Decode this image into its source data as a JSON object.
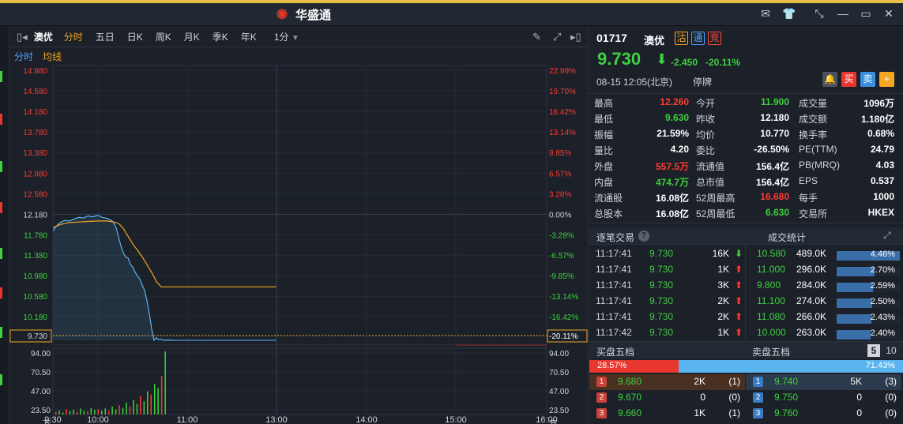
{
  "app": {
    "name": "华盛通",
    "logo_icon": "weibo-eye-logo-icon"
  },
  "window_controls": [
    "mail-icon",
    "tshirt-skin-icon",
    "shrink-icon",
    "minimize-icon",
    "maximize-icon",
    "close-icon"
  ],
  "toolbar": {
    "stock_name": "澳优",
    "tabs": [
      "分时",
      "五日",
      "日K",
      "周K",
      "月K",
      "季K",
      "年K"
    ],
    "active_tab": "分时",
    "period": "1分",
    "sub_tabs": [
      "分时",
      "均线"
    ]
  },
  "colors": {
    "up": "#ff3b30",
    "down": "#3fd13f",
    "price_line": "#5ab4f0",
    "avg_line": "#f5a623",
    "bg": "#1b2029"
  },
  "chart_data": {
    "type": "line",
    "title": "",
    "x_ticks": [
      "9:30",
      "10:00",
      "11:00",
      "13:00",
      "14:00",
      "15:00",
      "16:00"
    ],
    "y_left_ticks": [
      "14.980",
      "14.580",
      "14.180",
      "13.780",
      "13.380",
      "12.980",
      "12.580",
      "12.180",
      "11.780",
      "11.380",
      "10.980",
      "10.580",
      "10.180",
      "9.730"
    ],
    "y_right_ticks": [
      "22.99%",
      "19.70%",
      "16.42%",
      "13.14%",
      "9.85%",
      "6.57%",
      "3.28%",
      "0.00%",
      "-3.28%",
      "-6.57%",
      "-9.85%",
      "-13.14%",
      "-16.42%",
      "-20.11%"
    ],
    "prev_close": 12.18,
    "current_price": 9.73,
    "ylim": [
      9.73,
      14.98
    ],
    "series": [
      {
        "name": "",
        "x": [
          0,
          3,
          6,
          10,
          14,
          18,
          22,
          26,
          30,
          34,
          38,
          42,
          46,
          50,
          52,
          54,
          56,
          58,
          60,
          62,
          64,
          66,
          68,
          70,
          72,
          74,
          76,
          78,
          80,
          82,
          84,
          86,
          88,
          90,
          92,
          94,
          95,
          96,
          97,
          98,
          99,
          100,
          101,
          102,
          103,
          104
        ],
        "y": [
          11.86,
          11.95,
          12.02,
          12.06,
          12.05,
          12.09,
          12.12,
          12.11,
          12.15,
          12.13,
          12.16,
          12.12,
          12.1,
          12.06,
          12.0,
          11.9,
          11.72,
          11.55,
          11.42,
          11.35,
          11.33,
          11.2,
          11.15,
          11.05,
          10.98,
          10.92,
          10.8,
          10.7,
          10.5,
          10.25,
          9.95,
          9.73,
          9.78,
          9.74,
          9.75,
          9.73,
          9.73,
          9.74,
          9.73,
          9.73,
          9.74,
          9.73,
          9.73,
          9.73,
          9.73,
          9.73
        ]
      },
      {
        "name": "",
        "x": [
          0,
          6,
          14,
          22,
          30,
          38,
          46,
          52,
          56,
          60,
          64,
          68,
          72,
          76,
          80,
          84,
          88,
          92,
          100,
          110,
          130,
          150,
          170,
          190
        ],
        "y": [
          11.92,
          11.98,
          12.02,
          12.03,
          12.04,
          12.05,
          12.05,
          12.03,
          12.0,
          11.9,
          11.75,
          11.6,
          11.48,
          11.35,
          11.2,
          11.05,
          10.87,
          10.77,
          10.77,
          10.77,
          10.77,
          10.77,
          10.77,
          10.77
        ]
      }
    ],
    "volume": {
      "y_ticks": [
        "94.00",
        "70.50",
        "47.00",
        "23.50",
        "万"
      ],
      "x": [
        2,
        5,
        8,
        11,
        14,
        17,
        20,
        23,
        26,
        29,
        32,
        35,
        38,
        41,
        44,
        47,
        50,
        53,
        56,
        59,
        62,
        65,
        68,
        71,
        74,
        77,
        80,
        83,
        86,
        89,
        92,
        95
      ],
      "values": [
        4,
        6,
        3,
        8,
        5,
        7,
        4,
        9,
        6,
        5,
        10,
        7,
        8,
        6,
        9,
        5,
        12,
        8,
        14,
        10,
        18,
        12,
        22,
        16,
        28,
        20,
        35,
        30,
        46,
        40,
        58,
        95
      ],
      "ylim": [
        0,
        100
      ]
    },
    "x_domain": [
      0,
      420
    ]
  },
  "quote": {
    "code": "01717",
    "name": "澳优",
    "badges": [
      "沽",
      "通",
      "竞"
    ],
    "price": "9.730",
    "change": "-2.450",
    "change_pct": "-20.11%",
    "datetime": "08-15  12:05(北京)",
    "status": "停牌",
    "actions": [
      "bell-icon",
      "买",
      "卖",
      "+"
    ]
  },
  "stats": [
    [
      [
        "最高",
        "12.260",
        "up"
      ],
      [
        "今开",
        "11.900",
        "down"
      ],
      [
        "成交量",
        "1096万",
        "neutral"
      ]
    ],
    [
      [
        "最低",
        "9.630",
        "down"
      ],
      [
        "昨收",
        "12.180",
        "neutral"
      ],
      [
        "成交额",
        "1.180亿",
        "neutral"
      ]
    ],
    [
      [
        "振幅",
        "21.59%",
        "neutral"
      ],
      [
        "均价",
        "10.770",
        "neutral"
      ],
      [
        "换手率",
        "0.68%",
        "neutral"
      ]
    ],
    [
      [
        "量比",
        "4.20",
        "neutral"
      ],
      [
        "委比",
        "-26.50%",
        "neutral"
      ],
      [
        "PE(TTM)",
        "24.79",
        "neutral"
      ]
    ],
    [
      [
        "外盘",
        "557.5万",
        "up"
      ],
      [
        "流通值",
        "156.4亿",
        "neutral"
      ],
      [
        "PB(MRQ)",
        "4.03",
        "neutral"
      ]
    ],
    [
      [
        "内盘",
        "474.7万",
        "down"
      ],
      [
        "总市值",
        "156.4亿",
        "neutral"
      ],
      [
        "EPS",
        "0.537",
        "neutral"
      ]
    ],
    [
      [
        "流通股",
        "16.08亿",
        "neutral"
      ],
      [
        "52周最高",
        "16.680",
        "up"
      ],
      [
        "每手",
        "1000",
        "neutral"
      ]
    ],
    [
      [
        "总股本",
        "16.08亿",
        "neutral"
      ],
      [
        "52周最低",
        "6.630",
        "down"
      ],
      [
        "交易所",
        "HKEX",
        "neutral"
      ]
    ]
  ],
  "trades_header": {
    "ticks": "逐笔交易",
    "volstats": "成交统计"
  },
  "trades": [
    {
      "time": "11:17:41",
      "price": "9.730",
      "vol": "16K",
      "dir": "down"
    },
    {
      "time": "11:17:41",
      "price": "9.730",
      "vol": "1K",
      "dir": "up"
    },
    {
      "time": "11:17:41",
      "price": "9.730",
      "vol": "3K",
      "dir": "up"
    },
    {
      "time": "11:17:41",
      "price": "9.730",
      "vol": "2K",
      "dir": "up"
    },
    {
      "time": "11:17:41",
      "price": "9.730",
      "vol": "2K",
      "dir": "up"
    },
    {
      "time": "11:17:42",
      "price": "9.730",
      "vol": "1K",
      "dir": "up"
    }
  ],
  "vol_stats": [
    {
      "price": "10.580",
      "vol": "489.0K",
      "pct": "4.46%",
      "frac": 0.0446
    },
    {
      "price": "11.000",
      "vol": "296.0K",
      "pct": "2.70%",
      "frac": 0.027
    },
    {
      "price": "9.800",
      "vol": "284.0K",
      "pct": "2.59%",
      "frac": 0.0259
    },
    {
      "price": "11.100",
      "vol": "274.0K",
      "pct": "2.50%",
      "frac": 0.025
    },
    {
      "price": "11.080",
      "vol": "266.0K",
      "pct": "2.43%",
      "frac": 0.0243
    },
    {
      "price": "10.000",
      "vol": "263.0K",
      "pct": "2.40%",
      "frac": 0.024
    }
  ],
  "orderbook": {
    "buy_title": "买盘五档",
    "sell_title": "卖盘五档",
    "levels": [
      "5",
      "10"
    ],
    "buy_ratio": "28.57%",
    "sell_ratio": "71.43%",
    "buy_frac": 0.2857,
    "bids": [
      {
        "idx": "1",
        "price": "9.680",
        "vol": "2K",
        "cnt": "(1)"
      },
      {
        "idx": "2",
        "price": "9.670",
        "vol": "0",
        "cnt": "(0)"
      },
      {
        "idx": "3",
        "price": "9.660",
        "vol": "1K",
        "cnt": "(1)"
      }
    ],
    "asks": [
      {
        "idx": "1",
        "price": "9.740",
        "vol": "5K",
        "cnt": "(3)"
      },
      {
        "idx": "2",
        "price": "9.750",
        "vol": "0",
        "cnt": "(0)"
      },
      {
        "idx": "3",
        "price": "9.760",
        "vol": "0",
        "cnt": "(0)"
      }
    ]
  }
}
